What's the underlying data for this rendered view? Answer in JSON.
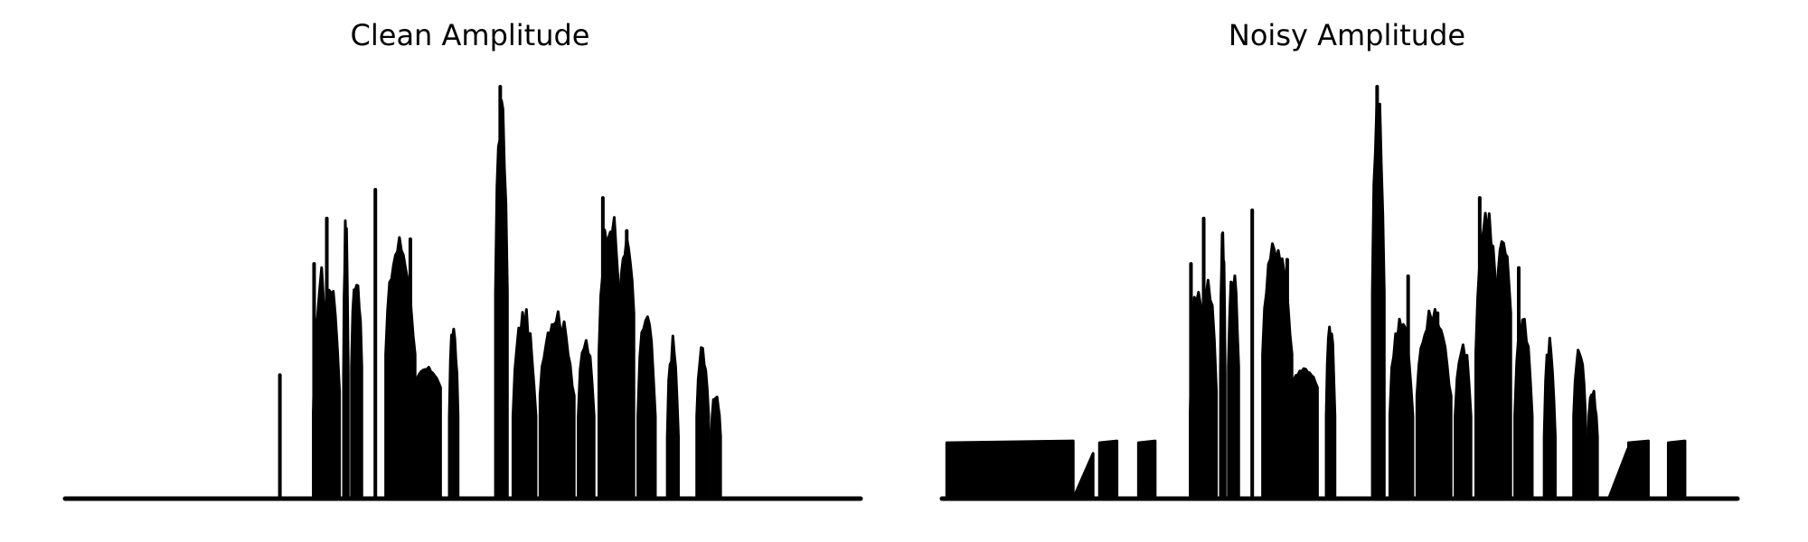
{
  "chart_data": [
    {
      "type": "line",
      "title": "Clean Amplitude",
      "xlabel": "",
      "ylabel": "",
      "axes_visible": false,
      "grid": false,
      "xlim": [
        0,
        1
      ],
      "ylim": [
        0,
        1
      ],
      "color": "#000000",
      "bursts": [
        {
          "x": [
            0.312,
            0.333
          ],
          "peak": 0.57,
          "floor": 0.21
        },
        {
          "x": [
            0.324,
            0.345
          ],
          "peak": 0.56,
          "floor": 0.26
        },
        {
          "x": [
            0.35,
            0.356
          ],
          "peak": 0.7,
          "floor": 0.3
        },
        {
          "x": [
            0.36,
            0.373
          ],
          "peak": 0.57,
          "floor": 0.32
        },
        {
          "x": [
            0.403,
            0.44
          ],
          "peak": 0.65,
          "floor": 0.35
        },
        {
          "x": [
            0.44,
            0.472
          ],
          "peak": 0.32,
          "floor": 0.27
        },
        {
          "x": [
            0.483,
            0.494
          ],
          "peak": 0.44,
          "floor": 0.2
        },
        {
          "x": [
            0.541,
            0.556
          ],
          "peak": 1.0,
          "floor": 0.5
        },
        {
          "x": [
            0.563,
            0.592
          ],
          "peak": 0.47,
          "floor": 0.2
        },
        {
          "x": [
            0.597,
            0.64
          ],
          "peak": 0.47,
          "floor": 0.25
        },
        {
          "x": [
            0.645,
            0.665
          ],
          "peak": 0.4,
          "floor": 0.2
        },
        {
          "x": [
            0.671,
            0.7
          ],
          "peak": 0.73,
          "floor": 0.35
        },
        {
          "x": [
            0.697,
            0.715
          ],
          "peak": 0.64,
          "floor": 0.45
        },
        {
          "x": [
            0.72,
            0.742
          ],
          "peak": 0.47,
          "floor": 0.2
        },
        {
          "x": [
            0.757,
            0.771
          ],
          "peak": 0.4,
          "floor": 0.15
        },
        {
          "x": [
            0.794,
            0.809
          ],
          "peak": 0.38,
          "floor": 0.2
        },
        {
          "x": [
            0.812,
            0.824
          ],
          "peak": 0.27,
          "floor": 0.15
        }
      ],
      "spikes": [
        {
          "x": 0.27,
          "y": 0.3
        },
        {
          "x": 0.313,
          "y": 0.57
        },
        {
          "x": 0.329,
          "y": 0.68
        },
        {
          "x": 0.39,
          "y": 0.75
        },
        {
          "x": 0.434,
          "y": 0.63
        },
        {
          "x": 0.547,
          "y": 1.0
        },
        {
          "x": 0.676,
          "y": 0.73
        },
        {
          "x": 0.706,
          "y": 0.65
        }
      ]
    },
    {
      "type": "line",
      "title": "Noisy Amplitude",
      "xlabel": "",
      "ylabel": "",
      "axes_visible": false,
      "grid": false,
      "xlim": [
        0,
        1
      ],
      "ylim": [
        0,
        1
      ],
      "color": "#000000",
      "blocks": [
        {
          "x": [
            0.006,
            0.165
          ],
          "height": 0.14
        },
        {
          "x": [
            0.198,
            0.22
          ],
          "height": 0.14
        },
        {
          "x": [
            0.247,
            0.268
          ],
          "height": 0.14
        },
        {
          "x": [
            0.863,
            0.888
          ],
          "height": 0.14
        },
        {
          "x": [
            0.913,
            0.934
          ],
          "height": 0.14
        }
      ],
      "ramps": [
        {
          "x": [
            0.165,
            0.19
          ],
          "height": 0.11
        },
        {
          "x": [
            0.838,
            0.862
          ],
          "height": 0.12
        }
      ],
      "bursts": [
        {
          "x": [
            0.312,
            0.333
          ],
          "peak": 0.57,
          "floor": 0.21
        },
        {
          "x": [
            0.324,
            0.345
          ],
          "peak": 0.56,
          "floor": 0.26
        },
        {
          "x": [
            0.35,
            0.356
          ],
          "peak": 0.7,
          "floor": 0.3
        },
        {
          "x": [
            0.36,
            0.373
          ],
          "peak": 0.57,
          "floor": 0.32
        },
        {
          "x": [
            0.403,
            0.44
          ],
          "peak": 0.65,
          "floor": 0.35
        },
        {
          "x": [
            0.44,
            0.472
          ],
          "peak": 0.32,
          "floor": 0.27
        },
        {
          "x": [
            0.483,
            0.494
          ],
          "peak": 0.44,
          "floor": 0.2
        },
        {
          "x": [
            0.541,
            0.556
          ],
          "peak": 1.0,
          "floor": 0.5
        },
        {
          "x": [
            0.563,
            0.592
          ],
          "peak": 0.47,
          "floor": 0.2
        },
        {
          "x": [
            0.597,
            0.64
          ],
          "peak": 0.47,
          "floor": 0.25
        },
        {
          "x": [
            0.645,
            0.665
          ],
          "peak": 0.4,
          "floor": 0.2
        },
        {
          "x": [
            0.671,
            0.7
          ],
          "peak": 0.73,
          "floor": 0.35
        },
        {
          "x": [
            0.697,
            0.715
          ],
          "peak": 0.64,
          "floor": 0.45
        },
        {
          "x": [
            0.72,
            0.742
          ],
          "peak": 0.47,
          "floor": 0.2
        },
        {
          "x": [
            0.757,
            0.771
          ],
          "peak": 0.4,
          "floor": 0.15
        },
        {
          "x": [
            0.794,
            0.809
          ],
          "peak": 0.38,
          "floor": 0.2
        },
        {
          "x": [
            0.812,
            0.824
          ],
          "peak": 0.27,
          "floor": 0.15
        }
      ],
      "spikes": [
        {
          "x": 0.313,
          "y": 0.57
        },
        {
          "x": 0.329,
          "y": 0.68
        },
        {
          "x": 0.39,
          "y": 0.7
        },
        {
          "x": 0.434,
          "y": 0.58
        },
        {
          "x": 0.547,
          "y": 1.0
        },
        {
          "x": 0.586,
          "y": 0.54
        },
        {
          "x": 0.623,
          "y": 0.45
        },
        {
          "x": 0.676,
          "y": 0.73
        },
        {
          "x": 0.725,
          "y": 0.56
        }
      ]
    }
  ]
}
